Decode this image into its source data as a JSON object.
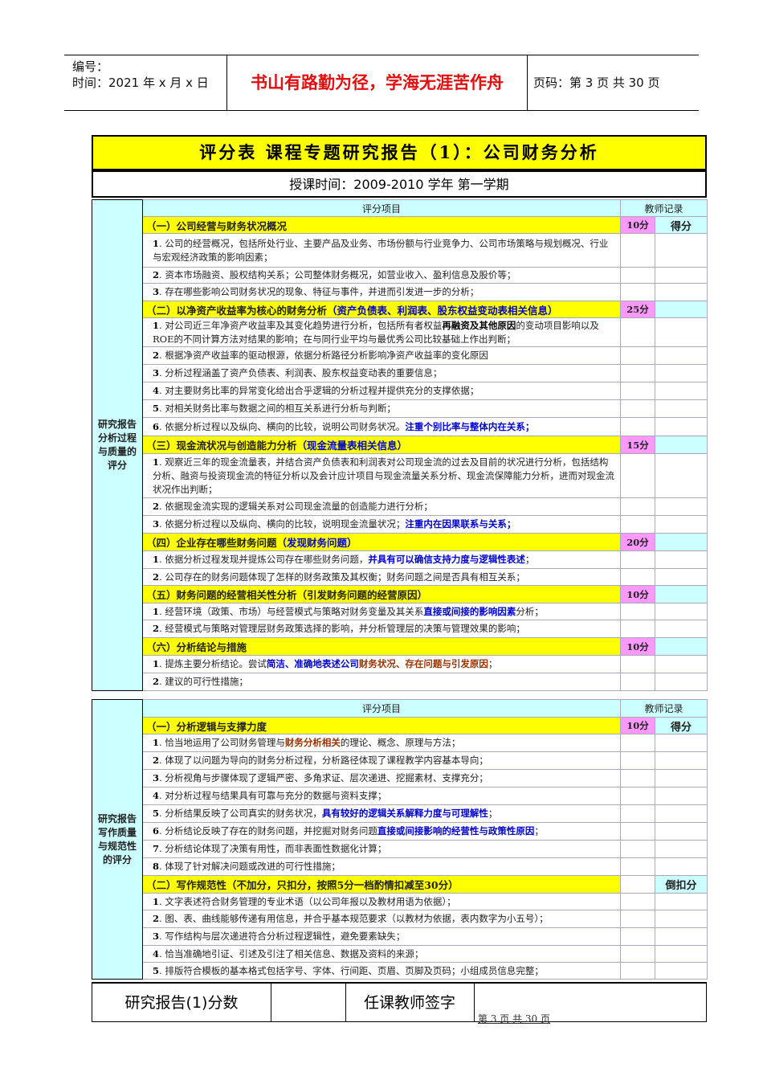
{
  "header": {
    "code_label": "编号：",
    "date": "时间：2021 年 x 月 x 日",
    "motto": "书山有路勤为径，学海无涯苦作舟",
    "page_info": "页码：第 3 页  共 30 页"
  },
  "title": "评分表  课程专题研究报告（1）：公司财务分析",
  "subtitle": "授课时间：2009-2010 学年  第一学期",
  "colors": {
    "category": "#ffff00",
    "points": "#ff99ff",
    "header": "#ccffff",
    "blue": "#0000cc",
    "brown": "#993300",
    "motto": "#e01010"
  },
  "sections": [
    {
      "side": "研究报告分析过程与质量的评分",
      "col_item": "评分项目",
      "col_record": "教师记录",
      "record_label": "得分",
      "categories": [
        {
          "title": [
            {
              "t": "（一）公司经营与财务状况概况"
            }
          ],
          "points": "10分",
          "items": [
            [
              {
                "t": "1",
                "s": "num"
              },
              {
                "t": ". 公司的经营概况，包括所处行业、主要产品及业务、市场份额与行业竞争力、公司市场策略与规划概况、行业与宏观经济政策的影响因素；"
              }
            ],
            [
              {
                "t": "2",
                "s": "num"
              },
              {
                "t": ". 资本市场融资、股权结构关系；公司整体财务概况，如营业收入、盈利信息及股价等；"
              }
            ],
            [
              {
                "t": "3",
                "s": "num"
              },
              {
                "t": ". 存在哪些影响公司财务状况的现象、特征与事件，并进而引发进一步的分析；"
              }
            ]
          ]
        },
        {
          "title": [
            {
              "t": "（二）以净资产收益率为核心的财务分析"
            },
            {
              "t": "（资产负债表、利润表、股东权益变动表相关信息）",
              "s": "b"
            }
          ],
          "points": "25分",
          "items": [
            [
              {
                "t": "1",
                "s": "num"
              },
              {
                "t": ".  对公司近三年净资产收益率及其变化趋势进行分析，包括所有者权益"
              },
              {
                "t": "再融资及其他原因",
                "s": "k"
              },
              {
                "t": "的变动项目影响以及ROE的不同计算方法对结果的影响；在与同行业平均与最优秀公司比较基础上作出判断；"
              }
            ],
            [
              {
                "t": "2",
                "s": "num"
              },
              {
                "t": ".  根据净资产收益率的驱动根源，依据分析路径分析影响净资产收益率的变化原因"
              }
            ],
            [
              {
                "t": "3",
                "s": "num"
              },
              {
                "t": ".  分析过程涵盖了资产负债表、利润表、股东权益变动表的重要信息；"
              }
            ],
            [
              {
                "t": "4",
                "s": "num"
              },
              {
                "t": ".  对主要财务比率的异常变化给出合乎逻辑的分析过程并提供充分的支撑依据；"
              }
            ],
            [
              {
                "t": "5",
                "s": "num"
              },
              {
                "t": ".  对相关财务比率与数据之间的相互关系进行分析与判断；"
              }
            ],
            [
              {
                "t": "6",
                "s": "num"
              },
              {
                "t": ".  依据分析过程以及纵向、横向的比较，说明公司财务状况。"
              },
              {
                "t": "注重个别比率与整体内在关系；",
                "s": "b"
              }
            ]
          ]
        },
        {
          "title": [
            {
              "t": "（三）现金流状况与创造能力分析"
            },
            {
              "t": "（现金流量表相关信息）",
              "s": "b"
            }
          ],
          "points": "15分",
          "items": [
            [
              {
                "t": "1",
                "s": "num"
              },
              {
                "t": ". 观察近三年的现金流量表，并结合资产负债表和利润表对公司现金流的过去及目前的状况进行分析，包括结构分析、融资与投资现金流的特征分析以及会计应计项目与现金流量关系分析、现金流保障能力分析，进而对现金流状况作出判断；"
              }
            ],
            [
              {
                "t": "2",
                "s": "num"
              },
              {
                "t": ".  依据现金流实现的逻辑关系对公司现金流量的创造能力进行分析；"
              }
            ],
            [
              {
                "t": "3",
                "s": "num"
              },
              {
                "t": ".  依据分析过程以及纵向、横向的比较，说明现金流量状况；"
              },
              {
                "t": "注重内在因果联系与关系；",
                "s": "b"
              }
            ]
          ]
        },
        {
          "title": [
            {
              "t": "（四）企业存在哪些财务问题"
            },
            {
              "t": "（发现财务问题）",
              "s": "b"
            }
          ],
          "points": "20分",
          "items": [
            [
              {
                "t": "1",
                "s": "num"
              },
              {
                "t": ".  依据分析过程发现并提炼公司存在哪些财务问题，"
              },
              {
                "t": "并具有可以确信支持力度与逻辑性表述",
                "s": "b"
              },
              {
                "t": "；"
              }
            ],
            [
              {
                "t": "2",
                "s": "num"
              },
              {
                "t": ".  公司存在的财务问题体现了怎样的财务政策及其权衡；财务问题之间是否具有相互关系；"
              }
            ]
          ]
        },
        {
          "title": [
            {
              "t": "（五）财务问题的经营相关性分析（引发财务问题的经营原因）"
            }
          ],
          "points": "10分",
          "items": [
            [
              {
                "t": "1",
                "s": "num"
              },
              {
                "t": ".  经营环境（政策、市场）与经营模式与策略对财务变量及其关系"
              },
              {
                "t": "直接或间接的影响因素",
                "s": "b"
              },
              {
                "t": "分析；"
              }
            ],
            [
              {
                "t": "2",
                "s": "num"
              },
              {
                "t": ".  经营模式与策略对管理层财务政策选择的影响，并分析管理层的决策与管理效果的影响；"
              }
            ]
          ]
        },
        {
          "title": [
            {
              "t": "（六）分析结论与措施"
            }
          ],
          "points": "10分",
          "items": [
            [
              {
                "t": "1",
                "s": "num"
              },
              {
                "t": ".  提炼主要分析结论。尝试"
              },
              {
                "t": "简洁、准确地表述公司",
                "s": "b"
              },
              {
                "t": "财务状况、存在问题与引发原因",
                "s": "r"
              },
              {
                "t": "；"
              }
            ],
            [
              {
                "t": "2",
                "s": "num"
              },
              {
                "t": ".  建议的可行性措施；"
              }
            ]
          ]
        }
      ]
    },
    {
      "side": "研究报告写作质量与规范性的评分",
      "col_item": "评分项目",
      "col_record": "教师记录",
      "record_label": "得分",
      "categories": [
        {
          "title": [
            {
              "t": "（一）分析逻辑与支撑力度"
            }
          ],
          "points": "10分",
          "items": [
            [
              {
                "t": "1",
                "s": "num"
              },
              {
                "t": ".  恰当地运用了公司财务管理与"
              },
              {
                "t": "财务分析相关",
                "s": "r"
              },
              {
                "t": "的理论、概念、原理与方法；"
              }
            ],
            [
              {
                "t": "2",
                "s": "num"
              },
              {
                "t": ".  体现了以问题为导向的财务分析过程，分析路径体现了课程教学内容基本导向；"
              }
            ],
            [
              {
                "t": "3",
                "s": "num"
              },
              {
                "t": ".  分析视角与步骤体现了逻辑严密、多角求证、层次递进、挖掘素材、支撑充分；"
              }
            ],
            [
              {
                "t": "4",
                "s": "num"
              },
              {
                "t": ".  对分析过程与结果具有可靠与充分的数据与资料支撑；"
              }
            ],
            [
              {
                "t": "5",
                "s": "num"
              },
              {
                "t": ".  分析结果反映了公司真实的财务状况，"
              },
              {
                "t": "具有较好的逻辑关系解释力度与可理解性",
                "s": "b"
              },
              {
                "t": "；"
              }
            ],
            [
              {
                "t": "6",
                "s": "num"
              },
              {
                "t": ".  分析结论反映了存在的财务问题，并挖掘对财务问题"
              },
              {
                "t": "直接或间接影响的经营性与政策性原因",
                "s": "b"
              },
              {
                "t": "；"
              }
            ],
            [
              {
                "t": "7",
                "s": "num"
              },
              {
                "t": ".  分析结论体现了决策有用性，而非表面性数据化计算；"
              }
            ],
            [
              {
                "t": "8",
                "s": "num"
              },
              {
                "t": ".  体现了针对解决问题或改进的可行性措施；"
              }
            ]
          ]
        },
        {
          "title": [
            {
              "t": "（二）写作规范性（不加分，只扣分，按照5分一档酌情扣减至30分）"
            }
          ],
          "points": "",
          "record": "倒扣分",
          "items": [
            [
              {
                "t": "1",
                "s": "num"
              },
              {
                "t": ".  文字表述符合财务管理的专业术语（以公司年报以及教材用语为依据）；"
              }
            ],
            [
              {
                "t": "2",
                "s": "num"
              },
              {
                "t": ".  图、表、曲线能够传递有用信息，并合乎基本规范要求（以教材为依据，表内数字为小五号）；"
              }
            ],
            [
              {
                "t": "3",
                "s": "num"
              },
              {
                "t": ".  写作结构与层次递进符合分析过程逻辑性，避免要素缺失；"
              }
            ],
            [
              {
                "t": "4",
                "s": "num"
              },
              {
                "t": ".  恰当准确地引证、引述及引注了相关信息、数据及资料的来源；"
              }
            ],
            [
              {
                "t": "5",
                "s": "num"
              },
              {
                "t": ".  排版符合模板的基本格式包括字号、字体、行间距、页眉、页脚及页码；小组成员信息完整；"
              }
            ]
          ]
        }
      ]
    }
  ],
  "footer": {
    "score_label": "研究报告(1)分数",
    "score_value": "",
    "signature_label": "任课教师签字",
    "page_note": "第  3  页  共  30  页"
  }
}
